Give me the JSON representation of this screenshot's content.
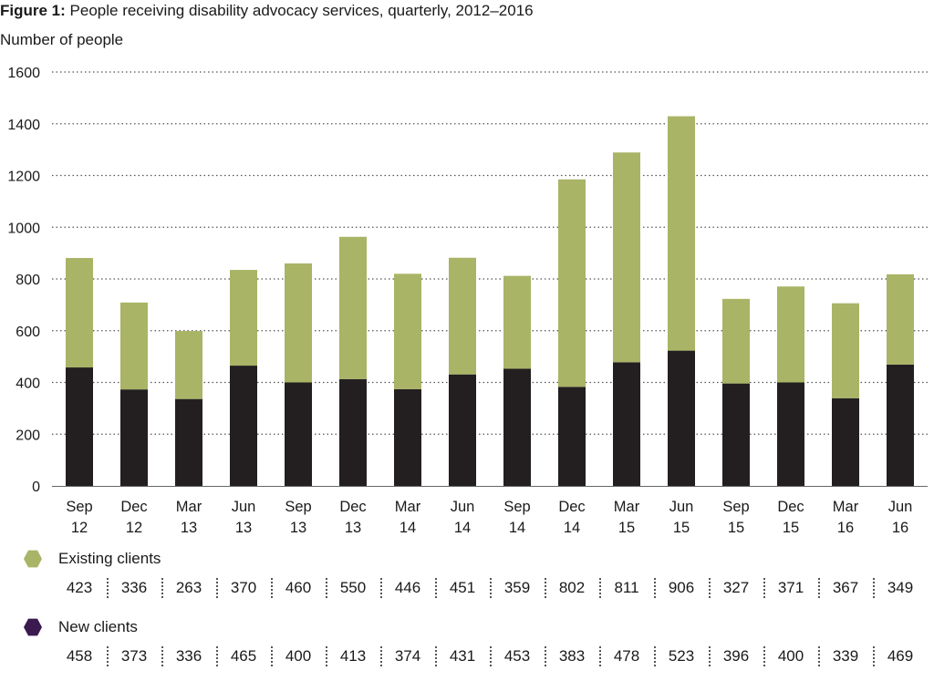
{
  "figure": {
    "label": "Figure 1:",
    "caption": "People receiving disability advocacy services, quarterly, 2012–2016"
  },
  "chart_data": {
    "type": "bar",
    "stacked": true,
    "title": "People receiving disability advocacy services, quarterly, 2012–2016",
    "ylabel": "Number of people",
    "xlabel": "",
    "ylim": [
      0,
      1600
    ],
    "yticks": [
      0,
      200,
      400,
      600,
      800,
      1000,
      1200,
      1400,
      1600
    ],
    "grid": "dotted horizontal",
    "categories": [
      [
        "Sep",
        "12"
      ],
      [
        "Dec",
        "12"
      ],
      [
        "Mar",
        "13"
      ],
      [
        "Jun",
        "13"
      ],
      [
        "Sep",
        "13"
      ],
      [
        "Dec",
        "13"
      ],
      [
        "Mar",
        "14"
      ],
      [
        "Jun",
        "14"
      ],
      [
        "Sep",
        "14"
      ],
      [
        "Dec",
        "14"
      ],
      [
        "Mar",
        "15"
      ],
      [
        "Jun",
        "15"
      ],
      [
        "Sep",
        "15"
      ],
      [
        "Dec",
        "15"
      ],
      [
        "Mar",
        "16"
      ],
      [
        "Jun",
        "16"
      ]
    ],
    "series": [
      {
        "name": "New clients",
        "color": "#231f20",
        "values": [
          458,
          373,
          336,
          465,
          400,
          413,
          374,
          431,
          453,
          383,
          478,
          523,
          396,
          400,
          339,
          469
        ]
      },
      {
        "name": "Existing clients",
        "color": "#a9b466",
        "values": [
          423,
          336,
          263,
          370,
          460,
          550,
          446,
          451,
          359,
          802,
          811,
          906,
          327,
          371,
          367,
          349
        ]
      }
    ],
    "legend": [
      {
        "name": "Existing clients",
        "color": "#a9b466"
      },
      {
        "name": "New clients",
        "color": "#3a1a4f"
      }
    ]
  }
}
